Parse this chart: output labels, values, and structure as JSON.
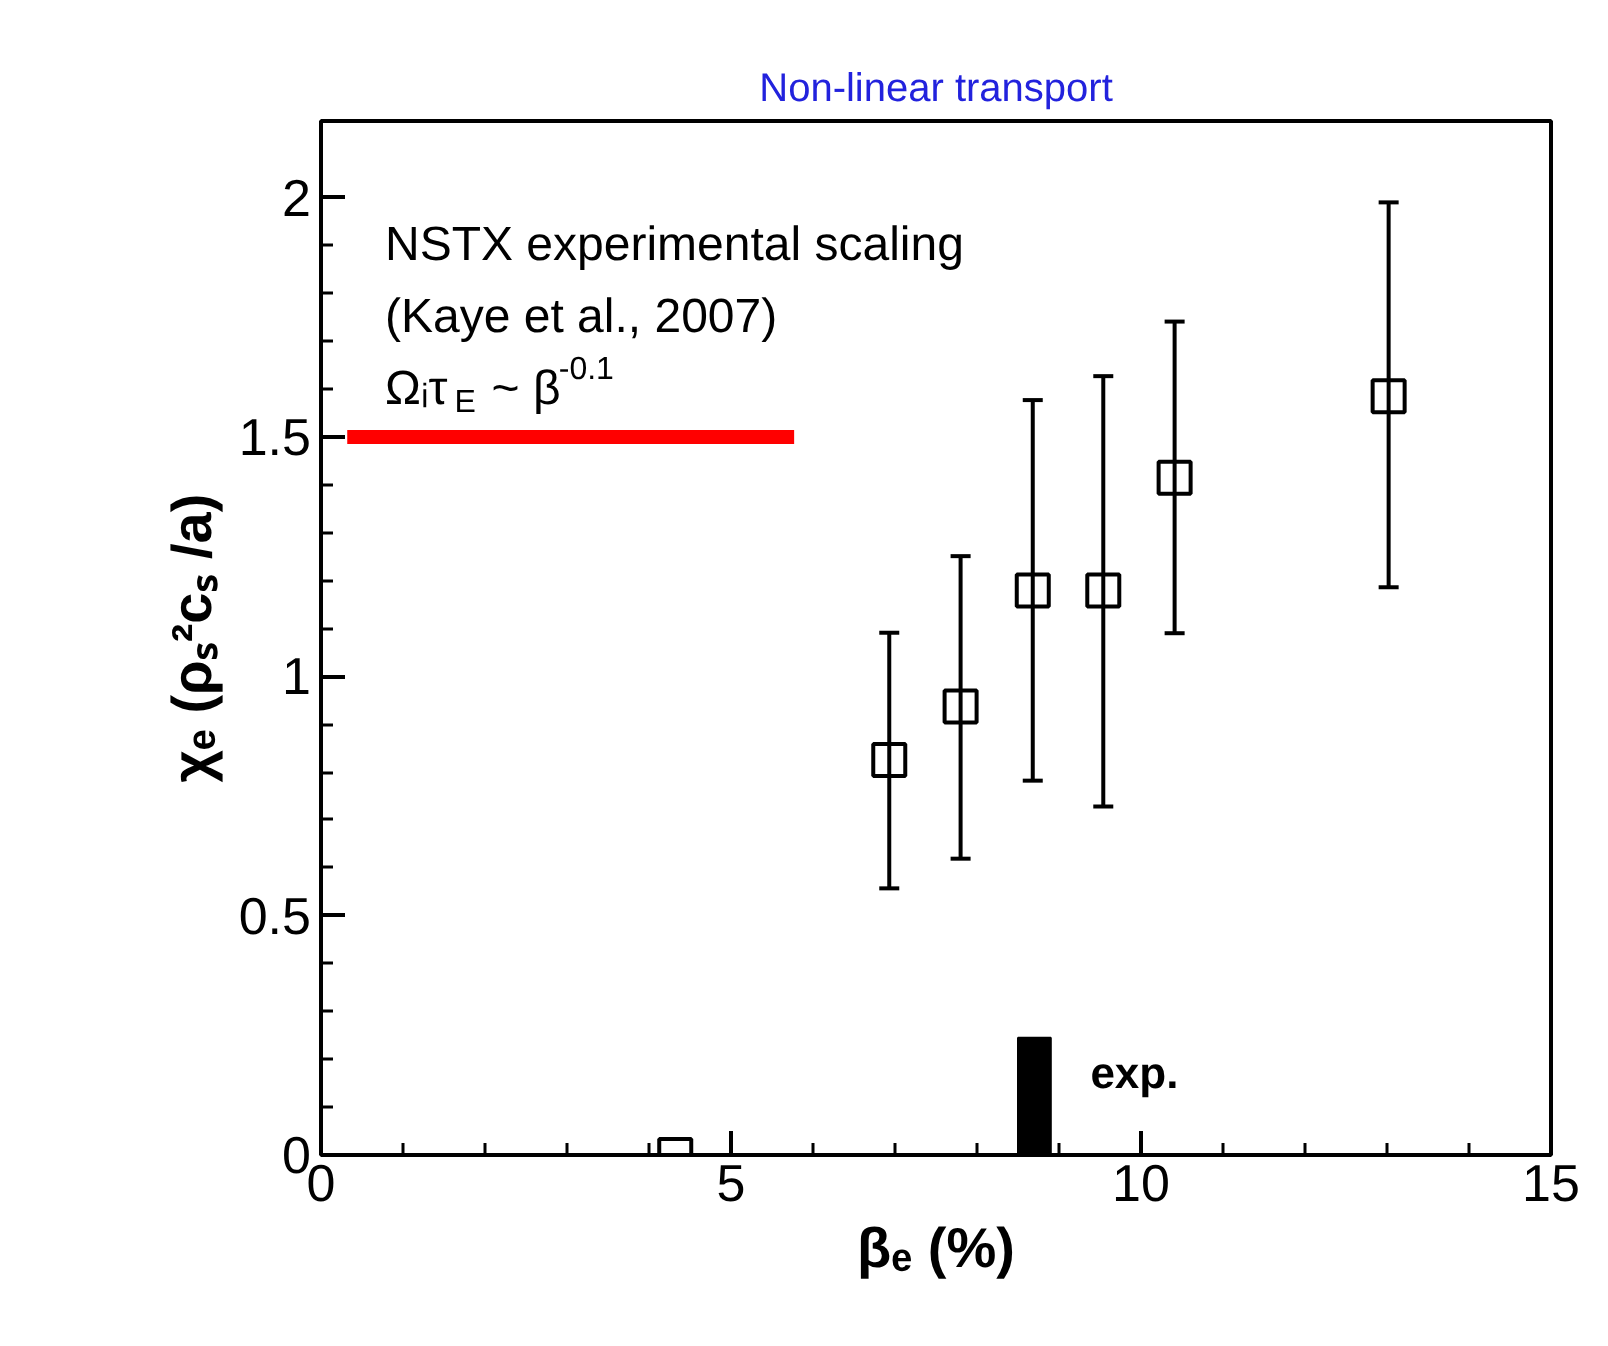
{
  "chart_data": {
    "type": "scatter",
    "title": "Non-linear transport",
    "xlabel": "βₑ (%)",
    "ylabel": "χₑ (ρₛ²cₛ /a)",
    "x": [
      4.32,
      6.93,
      7.8,
      8.68,
      9.54,
      10.41,
      13.02
    ],
    "series": [
      {
        "color": "#000000",
        "marker": "square",
        "values": [
          0.0,
          0.825,
          0.937,
          1.179,
          1.179,
          1.415,
          1.585
        ],
        "errors": [
          null,
          [
            0.557,
            1.091
          ],
          [
            0.619,
            1.251
          ],
          [
            0.782,
            1.577
          ],
          [
            0.728,
            1.627
          ],
          [
            1.09,
            1.741
          ],
          [
            1.186,
            1.99
          ]
        ]
      },
      {
        "type": "line",
        "color": "#ff0000",
        "x": [
          0.32,
          5.77
        ],
        "values": [
          1.5,
          1.5
        ]
      },
      {
        "type": "bar",
        "color": "#000000",
        "x": [
          8.7
        ],
        "values": [
          0.245
        ]
      }
    ],
    "annotations": [
      "NSTX experimental scaling",
      "(Kaye et al., 2007)",
      "Ωᵢτ$_{E}$ ~ β$^{-0.1}$",
      {
        "text": "exp.",
        "x": 8.7,
        "y": 0.245
      }
    ],
    "xlim": [
      0,
      15
    ],
    "ylim": [
      0,
      2.16
    ],
    "xticks": [
      0,
      5,
      10,
      15
    ],
    "yticks": [
      0,
      0.5,
      1,
      1.5,
      2
    ],
    "grid": false
  }
}
